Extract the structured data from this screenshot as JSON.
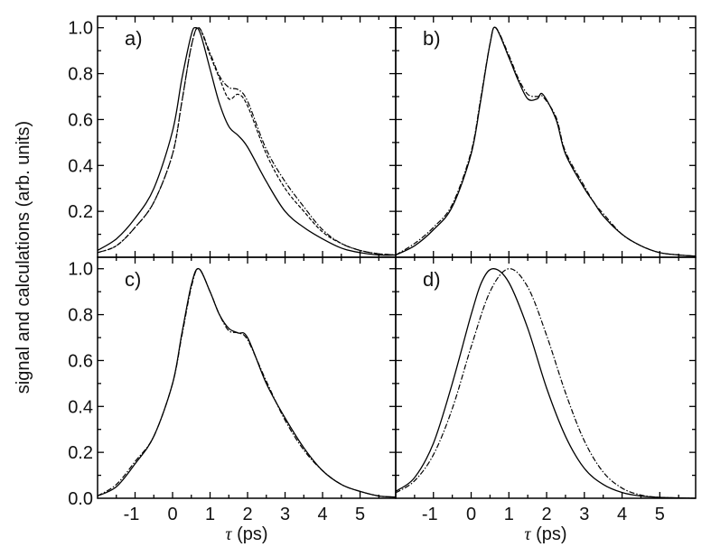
{
  "figure": {
    "ylabel": "signal and calculations (arb. units)",
    "xlabel_symbol": "τ",
    "xlabel_unit": "(ps)"
  },
  "chart_data": [
    {
      "type": "line",
      "panel": "a)",
      "xlim": [
        -2,
        5.95
      ],
      "ylim": [
        0,
        1.05
      ],
      "xticks": [
        -1,
        0,
        1,
        2,
        3,
        4,
        5
      ],
      "yticks": [
        0.2,
        0.4,
        0.6,
        0.8,
        1.0
      ],
      "ytick_labels": [
        "0.2",
        "0.4",
        "0.6",
        "0.8",
        "1.0"
      ],
      "series": [
        {
          "style": "solid",
          "x": [
            -2,
            -1.5,
            -1,
            -0.5,
            0,
            0.25,
            0.5,
            0.62,
            0.75,
            1,
            1.25,
            1.5,
            1.75,
            2,
            2.5,
            3,
            3.5,
            4,
            4.5,
            5,
            5.5,
            5.95
          ],
          "y": [
            0.03,
            0.08,
            0.17,
            0.3,
            0.55,
            0.78,
            0.97,
            1.0,
            0.97,
            0.82,
            0.67,
            0.57,
            0.53,
            0.48,
            0.33,
            0.2,
            0.13,
            0.08,
            0.04,
            0.02,
            0.01,
            0.01
          ]
        },
        {
          "style": "dashed",
          "x": [
            -2,
            -1.5,
            -1,
            -0.5,
            0,
            0.25,
            0.5,
            0.7,
            1,
            1.25,
            1.5,
            1.75,
            2,
            2.5,
            3,
            3.5,
            4,
            4.5,
            5,
            5.5,
            5.95
          ],
          "y": [
            0.02,
            0.05,
            0.13,
            0.24,
            0.45,
            0.68,
            0.92,
            1.0,
            0.88,
            0.78,
            0.69,
            0.71,
            0.66,
            0.45,
            0.3,
            0.2,
            0.11,
            0.06,
            0.03,
            0.015,
            0.01
          ]
        },
        {
          "style": "dashdot",
          "x": [
            -2,
            -1.5,
            -1,
            -0.5,
            0,
            0.25,
            0.5,
            0.7,
            1,
            1.25,
            1.5,
            1.75,
            2,
            2.5,
            3,
            3.5,
            4,
            4.5,
            5,
            5.5,
            5.95
          ],
          "y": [
            0.02,
            0.05,
            0.13,
            0.24,
            0.45,
            0.68,
            0.92,
            1.0,
            0.89,
            0.79,
            0.74,
            0.73,
            0.68,
            0.47,
            0.33,
            0.22,
            0.12,
            0.06,
            0.03,
            0.015,
            0.01
          ]
        }
      ]
    },
    {
      "type": "line",
      "panel": "b)",
      "xlim": [
        -2,
        5.95
      ],
      "ylim": [
        0,
        1.05
      ],
      "xticks": [
        -1,
        0,
        1,
        2,
        3,
        4,
        5
      ],
      "yticks": [
        0.2,
        0.4,
        0.6,
        0.8,
        1.0
      ],
      "series": [
        {
          "style": "solid",
          "x": [
            -2,
            -1.5,
            -1,
            -0.5,
            0,
            0.25,
            0.5,
            0.65,
            1,
            1.25,
            1.5,
            1.75,
            1.9,
            2.25,
            2.5,
            3,
            3.25,
            3.5,
            4,
            4.5,
            5,
            5.5,
            5.95
          ],
          "y": [
            0.01,
            0.05,
            0.12,
            0.22,
            0.45,
            0.68,
            0.93,
            1.0,
            0.87,
            0.77,
            0.69,
            0.69,
            0.71,
            0.6,
            0.45,
            0.3,
            0.24,
            0.18,
            0.1,
            0.05,
            0.02,
            0.01,
            0.005
          ]
        },
        {
          "style": "dashdot",
          "x": [
            -2,
            -1.5,
            -1,
            -0.5,
            0,
            0.25,
            0.5,
            0.65,
            1,
            1.25,
            1.5,
            1.75,
            1.9,
            2.25,
            2.5,
            3,
            3.25,
            3.5,
            4,
            4.5,
            5,
            5.5,
            5.95
          ],
          "y": [
            0.01,
            0.06,
            0.13,
            0.23,
            0.46,
            0.69,
            0.93,
            1.0,
            0.88,
            0.78,
            0.71,
            0.7,
            0.7,
            0.61,
            0.46,
            0.31,
            0.24,
            0.19,
            0.1,
            0.05,
            0.02,
            0.01,
            0.005
          ]
        }
      ]
    },
    {
      "type": "line",
      "panel": "c)",
      "xlim": [
        -2,
        5.95
      ],
      "ylim": [
        0,
        1.05
      ],
      "xticks": [
        -1,
        0,
        1,
        2,
        3,
        4,
        5
      ],
      "yticks": [
        0.0,
        0.2,
        0.4,
        0.6,
        0.8,
        1.0
      ],
      "ytick_labels": [
        "0.0",
        "0.2",
        "0.4",
        "0.6",
        "0.8",
        "1.0"
      ],
      "xtick_labels": [
        "-1",
        "0",
        "1",
        "2",
        "3",
        "4",
        "5"
      ],
      "series": [
        {
          "style": "solid",
          "x": [
            -2,
            -1.5,
            -1,
            -0.5,
            0,
            0.25,
            0.5,
            0.7,
            1,
            1.25,
            1.5,
            1.75,
            2,
            2.5,
            3,
            3.5,
            4,
            4.5,
            5,
            5.5,
            5.95
          ],
          "y": [
            0.01,
            0.05,
            0.15,
            0.27,
            0.5,
            0.72,
            0.93,
            1.0,
            0.9,
            0.8,
            0.74,
            0.72,
            0.7,
            0.5,
            0.35,
            0.22,
            0.12,
            0.06,
            0.03,
            0.01,
            0.005
          ]
        },
        {
          "style": "dashdot",
          "x": [
            -2,
            -1.5,
            -1,
            -0.5,
            0,
            0.25,
            0.5,
            0.7,
            1,
            1.25,
            1.5,
            1.75,
            2,
            2.5,
            3,
            3.5,
            4,
            4.5,
            5,
            5.5,
            5.95
          ],
          "y": [
            0.01,
            0.06,
            0.16,
            0.27,
            0.5,
            0.71,
            0.92,
            1.0,
            0.9,
            0.8,
            0.73,
            0.72,
            0.69,
            0.51,
            0.34,
            0.21,
            0.12,
            0.06,
            0.03,
            0.01,
            0.005
          ]
        }
      ]
    },
    {
      "type": "line",
      "panel": "d)",
      "xlim": [
        -2,
        5.95
      ],
      "ylim": [
        0,
        1.05
      ],
      "xticks": [
        -1,
        0,
        1,
        2,
        3,
        4,
        5
      ],
      "yticks": [
        0.2,
        0.4,
        0.6,
        0.8,
        1.0
      ],
      "xtick_labels": [
        "-1",
        "0",
        "1",
        "2",
        "3",
        "4",
        "5"
      ],
      "series": [
        {
          "style": "solid",
          "x": [
            -2,
            -1.5,
            -1,
            -0.5,
            0,
            0.3,
            0.6,
            1,
            1.5,
            2,
            2.5,
            3,
            3.5,
            4,
            4.5,
            5,
            5.95
          ],
          "y": [
            0.03,
            0.09,
            0.24,
            0.5,
            0.8,
            0.95,
            1.0,
            0.94,
            0.74,
            0.48,
            0.27,
            0.13,
            0.06,
            0.025,
            0.01,
            0.004,
            0.0
          ]
        },
        {
          "style": "dashdot",
          "x": [
            -2,
            -1.5,
            -1,
            -0.5,
            0,
            0.5,
            1,
            1.5,
            2,
            2.5,
            3,
            3.5,
            4,
            4.5,
            5,
            5.95
          ],
          "y": [
            0.024,
            0.076,
            0.19,
            0.39,
            0.66,
            0.9,
            1.0,
            0.92,
            0.71,
            0.46,
            0.25,
            0.114,
            0.044,
            0.014,
            0.004,
            0.0
          ]
        }
      ]
    }
  ]
}
